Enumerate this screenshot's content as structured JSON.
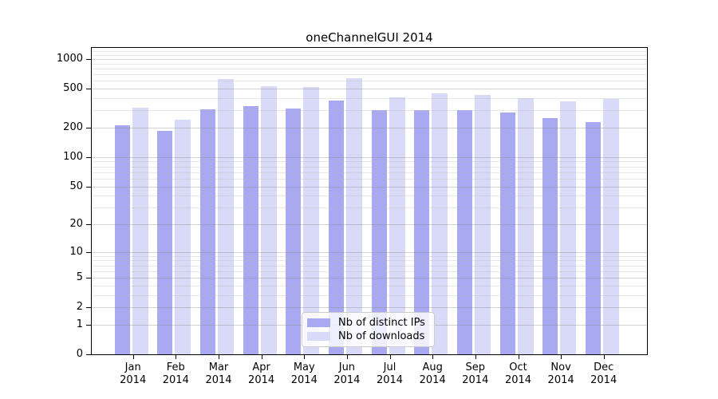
{
  "chart_data": {
    "type": "bar",
    "title": "oneChannelGUI 2014",
    "categories": [
      "Jan 2014",
      "Feb 2014",
      "Mar 2014",
      "Apr 2014",
      "May 2014",
      "Jun 2014",
      "Jul 2014",
      "Aug 2014",
      "Sep 2014",
      "Oct 2014",
      "Nov 2014",
      "Dec 2014"
    ],
    "x_tick_month": [
      "Jan",
      "Feb",
      "Mar",
      "Apr",
      "May",
      "Jun",
      "Jul",
      "Aug",
      "Sep",
      "Oct",
      "Nov",
      "Dec"
    ],
    "x_tick_year": "2014",
    "series": [
      {
        "name": "Nb of distinct IPs",
        "color": "#a9a9f1",
        "values": [
          210,
          185,
          310,
          330,
          315,
          380,
          305,
          300,
          305,
          285,
          250,
          230
        ]
      },
      {
        "name": "Nb of downloads",
        "color": "#d9d9f8",
        "values": [
          320,
          240,
          630,
          530,
          520,
          645,
          405,
          450,
          430,
          400,
          370,
          395
        ]
      }
    ],
    "y_scale": "log10(value+1)",
    "y_major_ticks": [
      0,
      1,
      2,
      5,
      10,
      20,
      50,
      100,
      200,
      500,
      1000
    ],
    "y_minor_ticks": [
      3,
      4,
      6,
      7,
      8,
      9,
      30,
      40,
      60,
      70,
      80,
      90,
      300,
      400,
      600,
      700,
      800,
      900,
      1100,
      1200
    ],
    "ylim": [
      0,
      1300
    ],
    "grid": true,
    "legend_position": "bottom-center",
    "colors": {
      "grid_major": "rgba(140,140,140,0.38)",
      "grid_minor": "rgba(185,185,185,0.32)",
      "axis": "#000000"
    }
  }
}
